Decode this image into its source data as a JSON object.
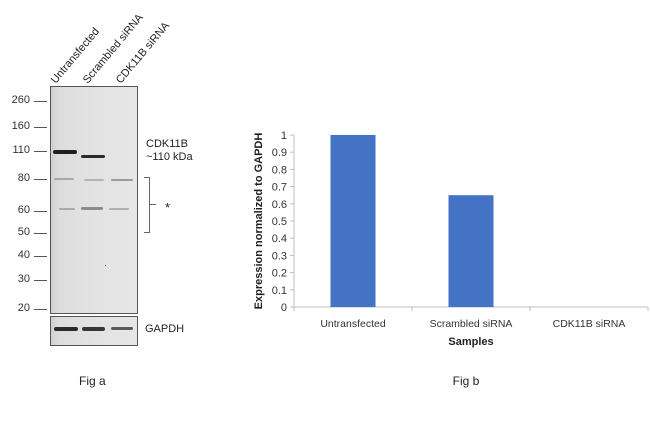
{
  "fig_a": {
    "lanes": [
      "Untransfected",
      "Scrambled siRNA",
      "CDK11B siRNA"
    ],
    "mw_markers": [
      "260",
      "160",
      "110",
      "80",
      "60",
      "50",
      "40",
      "30",
      "20"
    ],
    "target_label_line1": "CDK11B",
    "target_label_line2": "~110 kDa",
    "nonspecific_marker": "*",
    "loading_control": "GAPDH",
    "caption": "Fig a"
  },
  "chart_data": {
    "type": "bar",
    "title": "",
    "categories": [
      "Untransfected",
      "Scrambled siRNA",
      "CDK11B siRNA"
    ],
    "values": [
      1.0,
      0.65,
      0.0
    ],
    "xlabel": "Samples",
    "ylabel": "Expression  normalized to GAPDH",
    "ylim": [
      0,
      1
    ],
    "yticks": [
      "0",
      "0.1",
      "0.2",
      "0.3",
      "0.4",
      "0.5",
      "0.6",
      "0.7",
      "0.8",
      "0.9",
      "1"
    ],
    "grid": false,
    "legend": "none",
    "bar_color": "#4472c4",
    "caption": "Fig b"
  }
}
